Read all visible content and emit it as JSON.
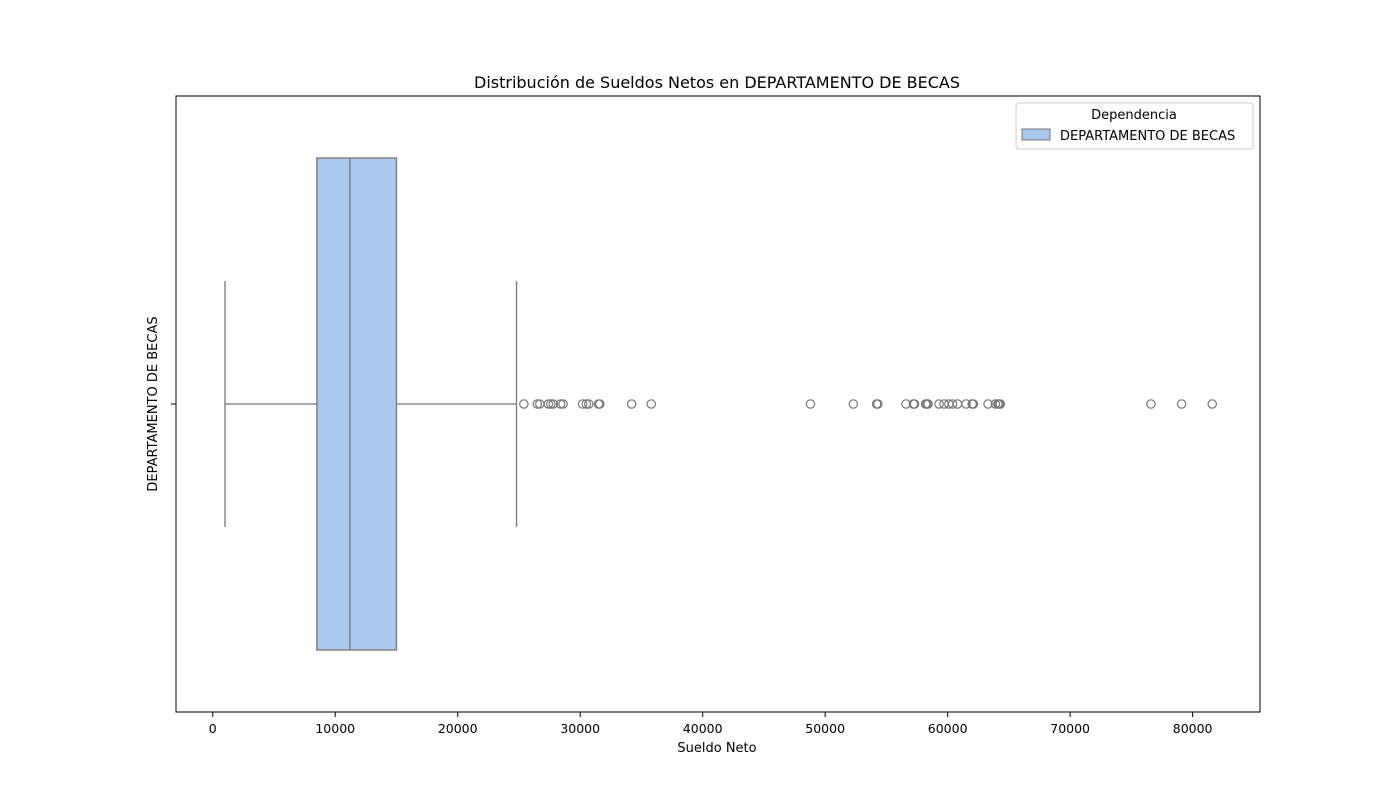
{
  "chart_data": {
    "type": "box",
    "orientation": "horizontal",
    "title": "Distribución de Sueldos Netos en DEPARTAMENTO DE BECAS",
    "xlabel": "Sueldo Neto",
    "ylabel": "DEPARTAMENTO DE BECAS",
    "xlim": [
      -3000,
      85500
    ],
    "xticks": [
      0,
      10000,
      20000,
      30000,
      40000,
      50000,
      60000,
      70000,
      80000
    ],
    "categories": [
      "DEPARTAMENTO DE BECAS"
    ],
    "series": [
      {
        "name": "DEPARTAMENTO DE BECAS",
        "whisker_low": 1000,
        "q1": 8500,
        "median": 11200,
        "q3": 15000,
        "whisker_high": 24800,
        "outliers": [
          25400,
          26500,
          26700,
          27400,
          27600,
          27800,
          28400,
          28600,
          30200,
          30500,
          30700,
          31500,
          31600,
          34200,
          35800,
          48800,
          52300,
          54200,
          54300,
          56600,
          57200,
          57300,
          58200,
          58300,
          58400,
          59300,
          59700,
          60100,
          60400,
          60800,
          61500,
          62000,
          62100,
          63300,
          63900,
          64100,
          64200,
          64300,
          76600,
          79100,
          81600
        ]
      }
    ],
    "legend": {
      "title": "Dependencia",
      "entries": [
        "DEPARTAMENTO DE BECAS"
      ],
      "placement": "top-right"
    },
    "grid": false,
    "colors": {
      "box_fill": "#a8c8ee",
      "line": "#777777",
      "axes": "#000000"
    }
  }
}
